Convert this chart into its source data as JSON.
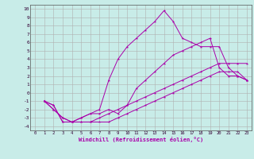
{
  "xlabel": "Windchill (Refroidissement éolien,°C)",
  "background_color": "#c8ece8",
  "grid_color": "#b0b0b0",
  "line_color": "#aa00aa",
  "xlim": [
    -0.5,
    23.5
  ],
  "ylim": [
    -4.5,
    10.5
  ],
  "xticks": [
    0,
    1,
    2,
    3,
    4,
    5,
    6,
    7,
    8,
    9,
    10,
    11,
    12,
    13,
    14,
    15,
    16,
    17,
    18,
    19,
    20,
    21,
    22,
    23
  ],
  "yticks": [
    -4,
    -3,
    -2,
    -1,
    0,
    1,
    2,
    3,
    4,
    5,
    6,
    7,
    8,
    9,
    10
  ],
  "line1_x": [
    1,
    2,
    3,
    4,
    5,
    7,
    8,
    9,
    10,
    11,
    12,
    13,
    14,
    15,
    16,
    17,
    18,
    19,
    20,
    21,
    22,
    23
  ],
  "line1_y": [
    -1,
    -1.5,
    -3.5,
    -3.5,
    -3.0,
    -2.0,
    1.5,
    4.0,
    5.5,
    6.5,
    7.5,
    8.5,
    9.8,
    8.5,
    6.5,
    6.0,
    5.5,
    5.5,
    5.5,
    3.0,
    2.0,
    1.5
  ],
  "line2_x": [
    1,
    2,
    3,
    4,
    5,
    6,
    7,
    8,
    9,
    10,
    11,
    12,
    13,
    14,
    15,
    16,
    17,
    18,
    19,
    20,
    21,
    22,
    23
  ],
  "line2_y": [
    -1,
    -1.5,
    -3.5,
    -3.5,
    -3.0,
    -2.5,
    -2.5,
    -2.0,
    -2.5,
    -1.5,
    0.5,
    1.5,
    2.5,
    3.5,
    4.5,
    5.0,
    5.5,
    6.0,
    6.5,
    3.0,
    2.0,
    2.0,
    1.5
  ],
  "line3_x": [
    1,
    2,
    3,
    4,
    5,
    6,
    7,
    8,
    9,
    10,
    11,
    12,
    13,
    14,
    15,
    16,
    17,
    18,
    19,
    20,
    21,
    22,
    23
  ],
  "line3_y": [
    -1,
    -2.0,
    -3.0,
    -3.5,
    -3.5,
    -3.5,
    -3.0,
    -2.5,
    -2.0,
    -1.5,
    -1.0,
    -0.5,
    0.0,
    0.5,
    1.0,
    1.5,
    2.0,
    2.5,
    3.0,
    3.5,
    3.5,
    3.5,
    3.5
  ],
  "line4_x": [
    1,
    2,
    3,
    4,
    5,
    6,
    7,
    8,
    9,
    10,
    11,
    12,
    13,
    14,
    15,
    16,
    17,
    18,
    19,
    20,
    21,
    22,
    23
  ],
  "line4_y": [
    -1,
    -2.0,
    -3.0,
    -3.5,
    -3.5,
    -3.5,
    -3.5,
    -3.5,
    -3.0,
    -2.5,
    -2.0,
    -1.5,
    -1.0,
    -0.5,
    0.0,
    0.5,
    1.0,
    1.5,
    2.0,
    2.5,
    2.5,
    2.5,
    1.5
  ]
}
